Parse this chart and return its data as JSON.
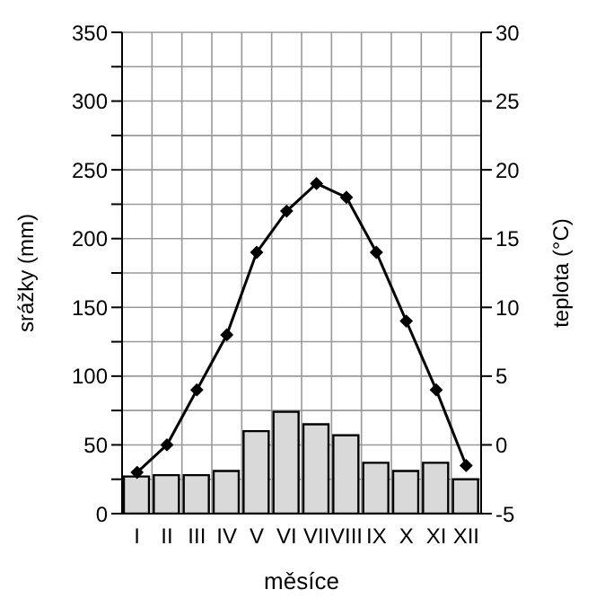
{
  "chart_data": {
    "type": "bar",
    "xlabel": "měsíce",
    "ylabel": "srážky (mm)",
    "y2label": "teplota (°C)",
    "categories": [
      "I",
      "II",
      "III",
      "IV",
      "V",
      "VI",
      "VII",
      "VIII",
      "IX",
      "X",
      "XI",
      "XII"
    ],
    "series": [
      {
        "color": "#d9d9d9",
        "values": [
          27,
          28,
          28,
          31,
          60,
          74,
          65,
          57,
          37,
          31,
          37,
          25
        ]
      },
      {
        "type": "line",
        "axis": "y2",
        "color": "#000000",
        "marker": "diamond",
        "line_style": "solid",
        "values": [
          -2,
          0,
          4,
          8,
          14,
          17,
          19,
          18,
          14,
          9,
          4,
          -1.5
        ]
      }
    ],
    "ylim": [
      0,
      350
    ],
    "yticks": [
      0,
      {
        "value": 25,
        "label": null
      },
      50,
      {
        "value": 75,
        "label": null
      },
      100,
      {
        "value": 125,
        "label": null
      },
      150,
      {
        "value": 175,
        "label": null
      },
      200,
      {
        "value": 225,
        "label": null
      },
      250,
      {
        "value": 275,
        "label": null
      },
      300,
      {
        "value": 325,
        "label": null
      },
      350
    ],
    "y2lim": [
      -5,
      30
    ],
    "y2ticks": [
      -5,
      0,
      5,
      10,
      15,
      20,
      25,
      30
    ],
    "grid": true,
    "legend": false
  }
}
